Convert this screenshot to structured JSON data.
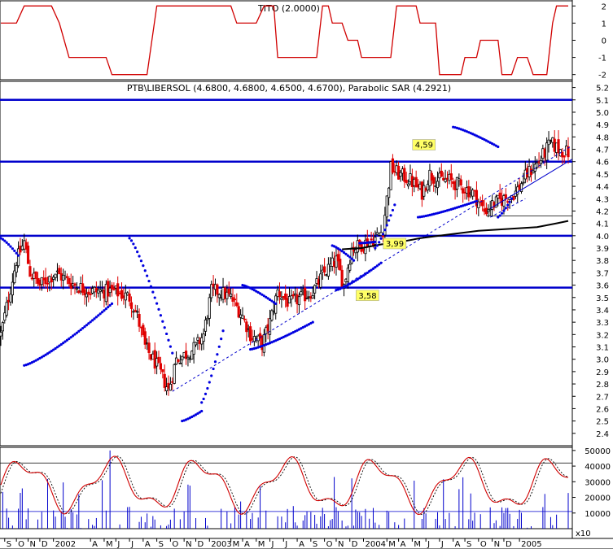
{
  "chart_data": {
    "type": "candlestick",
    "colors": {
      "up": "#000000",
      "down": "#e00000",
      "line": "#d00000",
      "sar": "#0000e0",
      "level": "#0000cc",
      "ma": "#000000",
      "volume": "#0000cc"
    },
    "top_panel": {
      "title": "TITO (2.0000)",
      "ylim": [
        -2.3,
        2.3
      ],
      "yticks": [
        "2",
        "1",
        "0",
        "-1",
        "-2"
      ],
      "steps": [
        [
          0,
          1
        ],
        [
          8,
          1
        ],
        [
          12,
          2
        ],
        [
          26,
          2
        ],
        [
          30,
          1
        ],
        [
          35,
          -1
        ],
        [
          54,
          -1
        ],
        [
          57,
          -2
        ],
        [
          75,
          -2
        ],
        [
          80,
          2
        ],
        [
          118,
          2
        ],
        [
          121,
          1
        ],
        [
          131,
          1
        ],
        [
          135,
          2
        ],
        [
          140,
          2
        ],
        [
          142,
          -1
        ],
        [
          162,
          -1
        ],
        [
          165,
          2
        ],
        [
          168,
          2
        ],
        [
          170,
          1
        ],
        [
          175,
          1
        ],
        [
          178,
          0
        ],
        [
          183,
          0
        ],
        [
          185,
          -1
        ],
        [
          200,
          -1
        ],
        [
          203,
          2
        ],
        [
          213,
          2
        ],
        [
          215,
          1
        ],
        [
          223,
          1
        ],
        [
          225,
          -2
        ],
        [
          236,
          -2
        ],
        [
          238,
          -1
        ],
        [
          244,
          -1
        ],
        [
          246,
          0
        ],
        [
          255,
          0
        ],
        [
          257,
          -2
        ],
        [
          262,
          -2
        ],
        [
          265,
          -1
        ],
        [
          270,
          -1
        ],
        [
          273,
          -2
        ],
        [
          280,
          -2
        ],
        [
          283,
          1
        ],
        [
          285,
          2
        ],
        [
          291,
          2
        ]
      ]
    },
    "main_panel": {
      "title": "PTB\\LIBERSOL (4.6800, 4.6800, 4.6500, 4.6700), Parabolic SAR (4.2921)",
      "ylim": [
        2.3,
        5.25
      ],
      "yticks": [
        "5.2",
        "5.1",
        "5.0",
        "4.9",
        "4.8",
        "4.7",
        "4.6",
        "4.5",
        "4.4",
        "4.3",
        "4.2",
        "4.1",
        "4.0",
        "3.9",
        "3.8",
        "3.7",
        "3.6",
        "3.5",
        "3.4",
        "3.3",
        "3.2",
        "3.1",
        "3.0",
        "2.9",
        "2.8",
        "2.7",
        "2.6",
        "2.5",
        "2.4"
      ],
      "close_anchors": [
        [
          0,
          3.2
        ],
        [
          4,
          3.5
        ],
        [
          8,
          3.8
        ],
        [
          12,
          3.95
        ],
        [
          15,
          3.7
        ],
        [
          20,
          3.6
        ],
        [
          28,
          3.7
        ],
        [
          38,
          3.6
        ],
        [
          46,
          3.55
        ],
        [
          58,
          3.55
        ],
        [
          66,
          3.5
        ],
        [
          70,
          3.35
        ],
        [
          74,
          3.1
        ],
        [
          80,
          2.95
        ],
        [
          86,
          2.75
        ],
        [
          90,
          3.0
        ],
        [
          96,
          3.05
        ],
        [
          100,
          3.1
        ],
        [
          104,
          3.2
        ],
        [
          108,
          3.55
        ],
        [
          112,
          3.55
        ],
        [
          118,
          3.5
        ],
        [
          124,
          3.35
        ],
        [
          128,
          3.2
        ],
        [
          134,
          3.12
        ],
        [
          138,
          3.3
        ],
        [
          142,
          3.55
        ],
        [
          148,
          3.45
        ],
        [
          154,
          3.5
        ],
        [
          160,
          3.55
        ],
        [
          166,
          3.7
        ],
        [
          172,
          3.8
        ],
        [
          176,
          3.6
        ],
        [
          180,
          3.9
        ],
        [
          184,
          3.92
        ],
        [
          188,
          3.95
        ],
        [
          192,
          3.98
        ],
        [
          196,
          4.05
        ],
        [
          200,
          4.55
        ],
        [
          204,
          4.5
        ],
        [
          210,
          4.45
        ],
        [
          216,
          4.35
        ],
        [
          220,
          4.5
        ],
        [
          224,
          4.45
        ],
        [
          230,
          4.45
        ],
        [
          236,
          4.4
        ],
        [
          242,
          4.35
        ],
        [
          248,
          4.2
        ],
        [
          252,
          4.25
        ],
        [
          258,
          4.3
        ],
        [
          264,
          4.35
        ],
        [
          270,
          4.5
        ],
        [
          276,
          4.6
        ],
        [
          282,
          4.75
        ],
        [
          286,
          4.7
        ],
        [
          291,
          4.67
        ]
      ],
      "levels": [
        5.1,
        4.6,
        4.0,
        3.58
      ],
      "support_level": 4.16,
      "labels": [
        {
          "text": "4,59",
          "x": 212,
          "y": 4.72
        },
        {
          "text": "3,99",
          "x": 197,
          "y": 3.92
        },
        {
          "text": "3,58",
          "x": 183,
          "y": 3.5
        }
      ],
      "trendlines": [
        {
          "points": [
            [
              88,
              2.74
            ],
            [
              292,
              4.72
            ]
          ],
          "style": "dashed"
        },
        {
          "points": [
            [
              251,
              4.15
            ],
            [
              269,
              4.3
            ]
          ],
          "style": "dashed"
        },
        {
          "points": [
            [
              251,
              4.22
            ],
            [
              293,
              4.62
            ]
          ],
          "style": "solid"
        }
      ],
      "ma": [
        [
          175,
          3.89
        ],
        [
          185,
          3.9
        ],
        [
          195,
          3.93
        ],
        [
          205,
          3.95
        ],
        [
          215,
          3.98
        ],
        [
          225,
          4.0
        ],
        [
          235,
          4.02
        ],
        [
          245,
          4.04
        ],
        [
          255,
          4.05
        ],
        [
          265,
          4.06
        ],
        [
          275,
          4.07
        ],
        [
          285,
          4.1
        ],
        [
          291,
          4.12
        ]
      ],
      "sar": [
        [
          [
            0,
            3.98
          ],
          [
            9,
            3.84
          ]
        ],
        [
          [
            12,
            2.95
          ],
          [
            57,
            3.45
          ]
        ],
        [
          [
            66,
            3.98
          ],
          [
            88,
            3.05
          ]
        ],
        [
          [
            93,
            2.5
          ],
          [
            103,
            2.58
          ]
        ],
        [
          [
            103,
            2.65
          ],
          [
            114,
            3.23
          ]
        ],
        [
          [
            124,
            3.6
          ],
          [
            141,
            3.45
          ]
        ],
        [
          [
            128,
            3.08
          ],
          [
            160,
            3.3
          ]
        ],
        [
          [
            170,
            3.92
          ],
          [
            181,
            3.8
          ]
        ],
        [
          [
            172,
            3.56
          ],
          [
            195,
            3.78
          ]
        ],
        [
          [
            184,
            3.94
          ],
          [
            192,
            3.95
          ]
        ],
        [
          [
            192,
            3.9
          ],
          [
            202,
            4.25
          ]
        ],
        [
          [
            214,
            4.15
          ],
          [
            244,
            4.28
          ]
        ],
        [
          [
            232,
            4.88
          ],
          [
            255,
            4.72
          ]
        ],
        [
          [
            255,
            4.15
          ],
          [
            262,
            4.3
          ]
        ]
      ]
    },
    "volume_panel": {
      "ylim": [
        0,
        52000
      ],
      "yticks": [
        "50000",
        "40000",
        "30000",
        "20000",
        "10000"
      ],
      "hlines": [
        42000,
        11000
      ],
      "unit": "x10"
    },
    "x_axis": {
      "n_bars": 292,
      "ticks": [
        {
          "label": "S",
          "i": 2
        },
        {
          "label": "O",
          "i": 8
        },
        {
          "label": "N",
          "i": 14
        },
        {
          "label": "D",
          "i": 20
        },
        {
          "label": "2002",
          "i": 27
        },
        {
          "label": "A",
          "i": 46
        },
        {
          "label": "M",
          "i": 53
        },
        {
          "label": "J",
          "i": 59
        },
        {
          "label": "J",
          "i": 66
        },
        {
          "label": "A",
          "i": 73
        },
        {
          "label": "S",
          "i": 80
        },
        {
          "label": "O",
          "i": 87
        },
        {
          "label": "N",
          "i": 94
        },
        {
          "label": "D",
          "i": 100
        },
        {
          "label": "2003",
          "i": 107
        },
        {
          "label": "M",
          "i": 118
        },
        {
          "label": "A",
          "i": 124
        },
        {
          "label": "M",
          "i": 131
        },
        {
          "label": "J",
          "i": 138
        },
        {
          "label": "J",
          "i": 145
        },
        {
          "label": "A",
          "i": 152
        },
        {
          "label": "S",
          "i": 159
        },
        {
          "label": "O",
          "i": 166
        },
        {
          "label": "N",
          "i": 172
        },
        {
          "label": "D",
          "i": 179
        },
        {
          "label": "2004",
          "i": 186
        },
        {
          "label": "M",
          "i": 198
        },
        {
          "label": "A",
          "i": 204
        },
        {
          "label": "M",
          "i": 211
        },
        {
          "label": "J",
          "i": 218
        },
        {
          "label": "J",
          "i": 225
        },
        {
          "label": "A",
          "i": 232
        },
        {
          "label": "S",
          "i": 238
        },
        {
          "label": "O",
          "i": 245
        },
        {
          "label": "N",
          "i": 252
        },
        {
          "label": "D",
          "i": 258
        },
        {
          "label": "2005",
          "i": 266
        }
      ]
    }
  }
}
